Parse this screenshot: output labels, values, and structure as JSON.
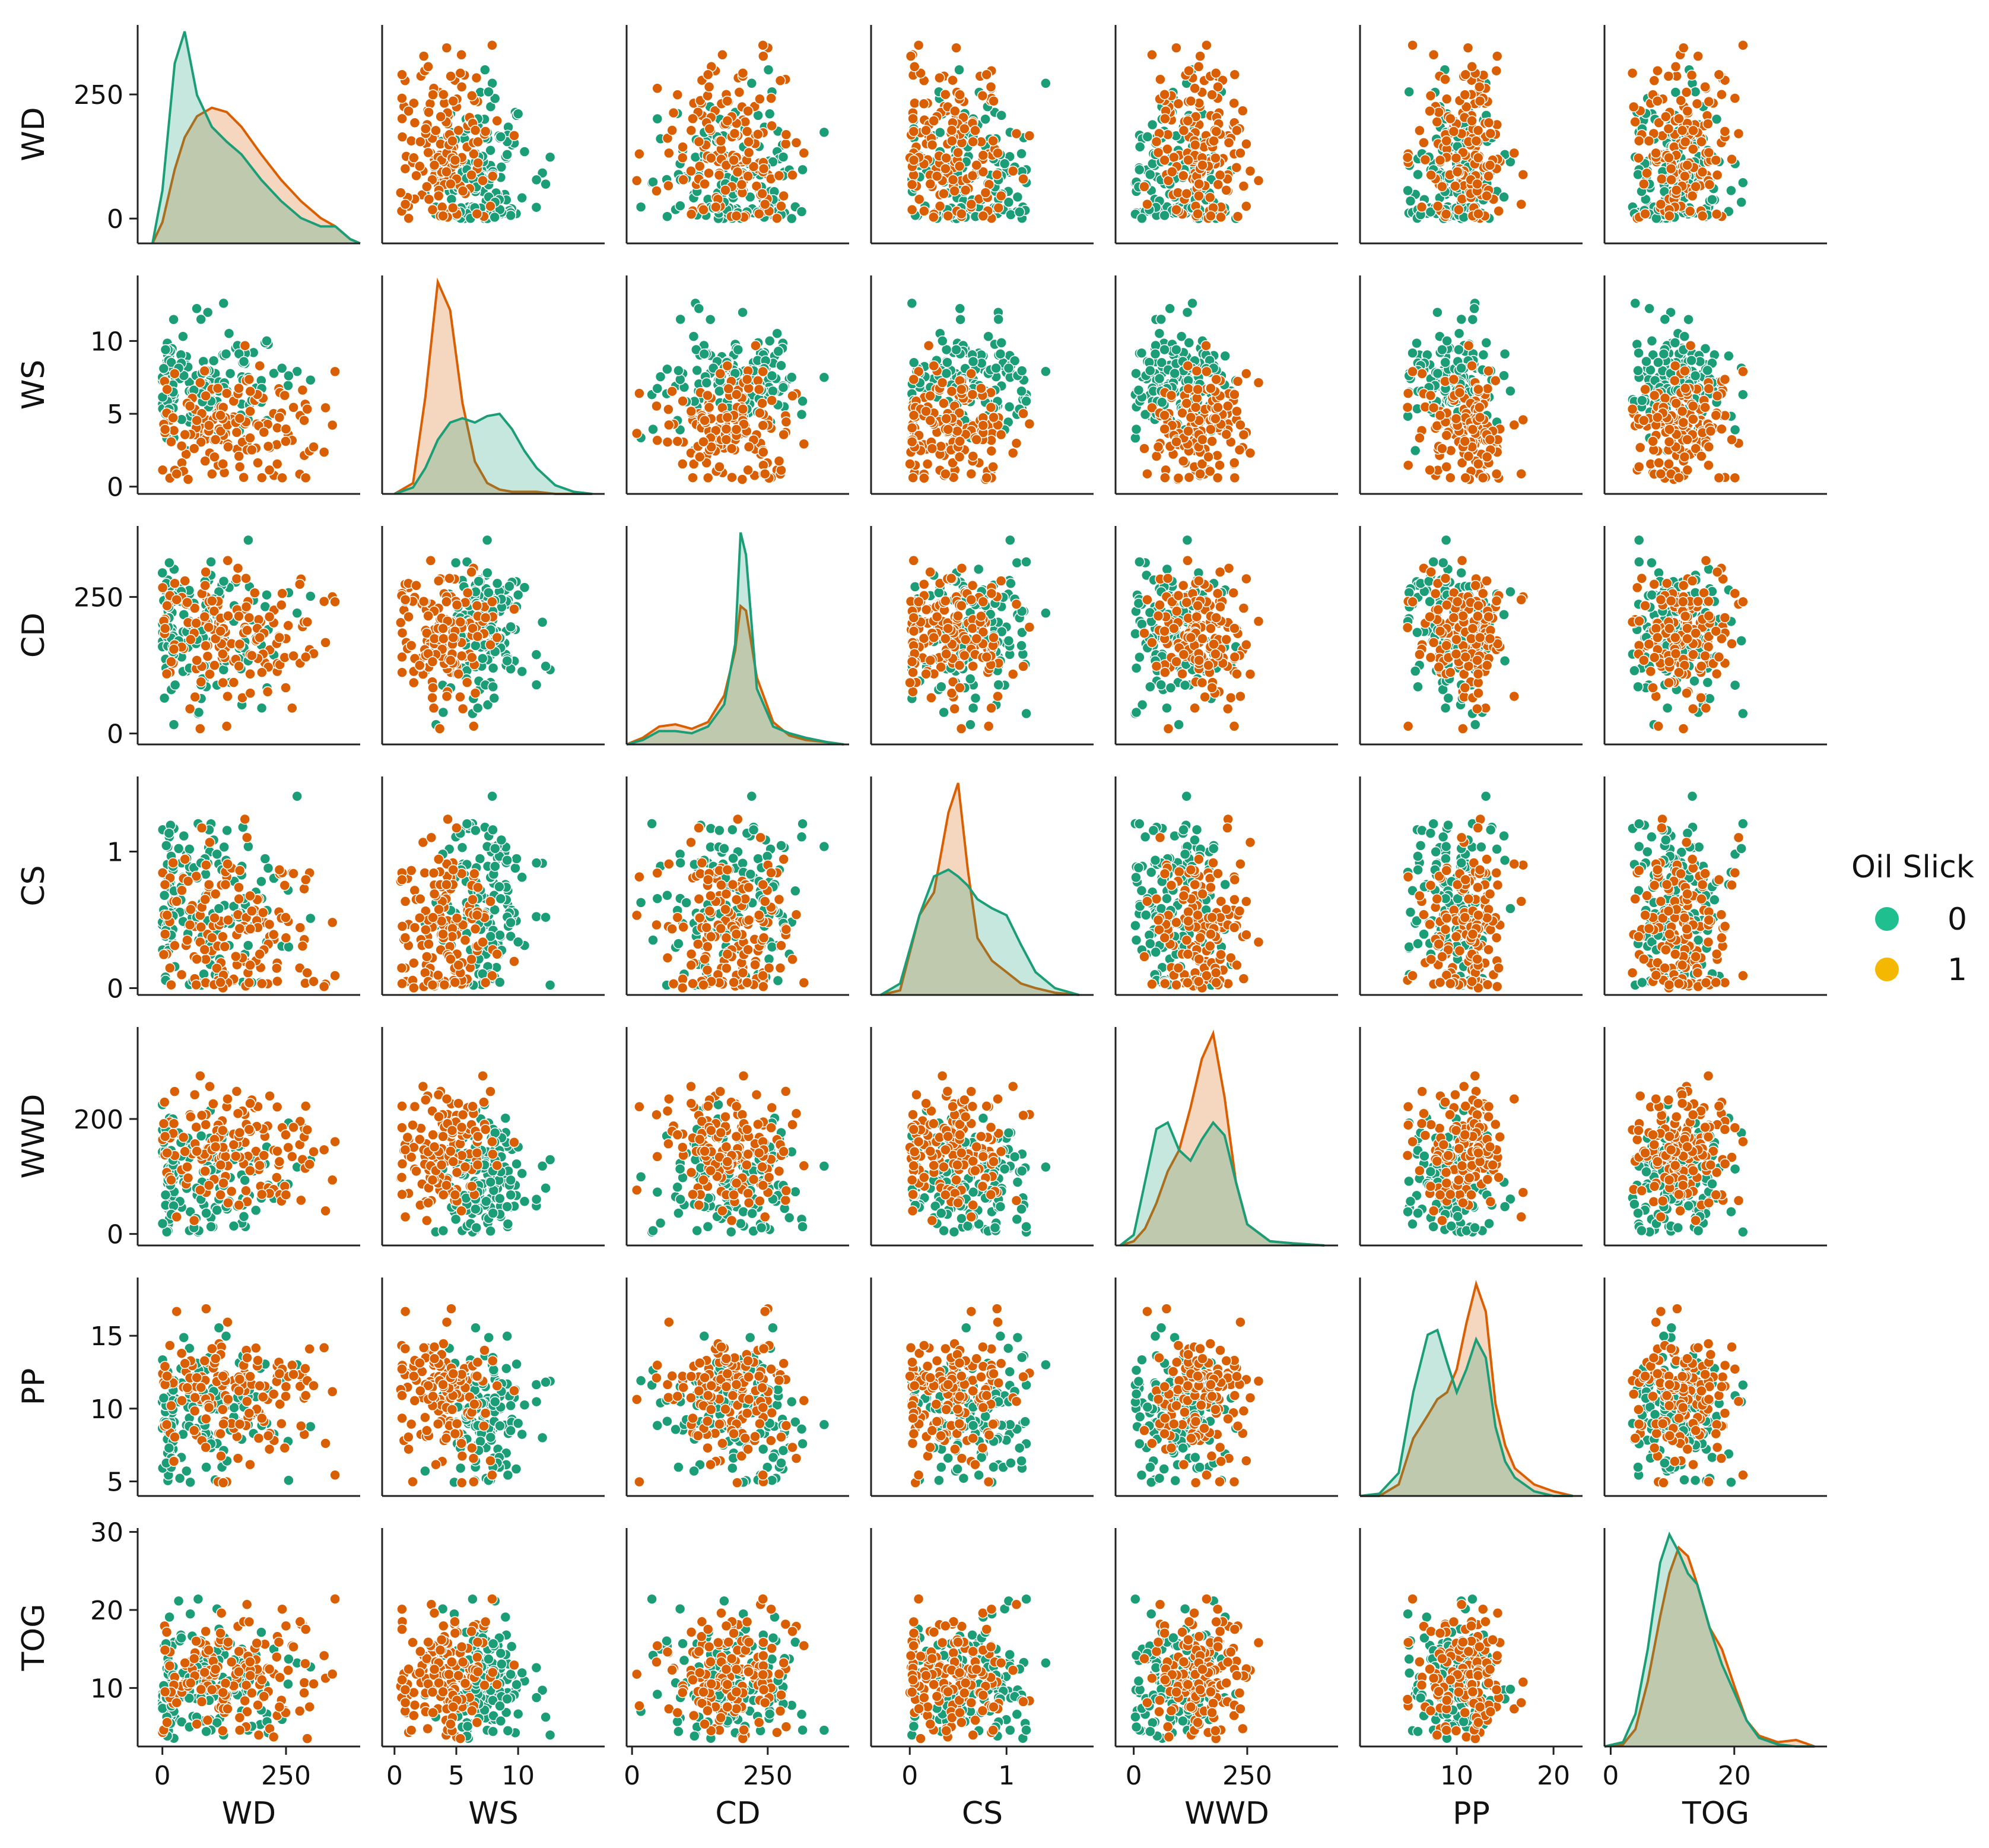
{
  "chart_data": {
    "type": "scatter",
    "title": "",
    "variables": [
      "WD",
      "WS",
      "CD",
      "CS",
      "WWD",
      "PP",
      "TOG"
    ],
    "hue": "Oil Slick",
    "diagonal": "kde",
    "legend": {
      "title": "Oil Slick",
      "position": "right",
      "entries": [
        {
          "label": "0",
          "color": "#1b9e77"
        },
        {
          "label": "1",
          "color": "#d95f02"
        }
      ]
    },
    "colors": {
      "0": "#1b9e77",
      "1": "#d95f02"
    },
    "legend_marker_colors": {
      "0": "#1fbf90",
      "1": "#f5b800"
    },
    "axes": {
      "WD": {
        "label": "WD",
        "range": [
          -50,
          390
        ],
        "ticks": [
          0,
          250
        ],
        "tick_labels": [
          "0",
          "250"
        ]
      },
      "WS": {
        "label": "WS",
        "range": [
          -0.5,
          14.5
        ],
        "ticks": [
          0,
          5,
          10
        ],
        "tick_labels": [
          "0",
          "5",
          "10"
        ]
      },
      "CD": {
        "label": "CD",
        "range": [
          -20,
          380
        ],
        "ticks": [
          0,
          250
        ],
        "tick_labels": [
          "0",
          "250"
        ]
      },
      "CS": {
        "label": "CS",
        "range": [
          -0.05,
          1.55
        ],
        "ticks": [
          0,
          1
        ],
        "tick_labels": [
          "0",
          "1"
        ]
      },
      "WWD": {
        "label": "WWD",
        "range": [
          -20,
          360
        ],
        "ticks": [
          0,
          200
        ],
        "tick_labels": [
          "0",
          "200"
        ]
      },
      "PP": {
        "label": "PP",
        "range": [
          4,
          19
        ],
        "ticks": [
          5,
          10,
          15
        ],
        "tick_labels": [
          "5",
          "10",
          "15"
        ]
      },
      "TOG": {
        "label": "TOG",
        "range": [
          2.5,
          30.5
        ],
        "ticks": [
          10,
          20,
          30
        ],
        "tick_labels": [
          "10",
          "20",
          "30"
        ]
      }
    },
    "x_axes": {
      "WD": {
        "range": [
          -50,
          400
        ],
        "ticks": [
          0,
          250
        ],
        "tick_labels": [
          "0",
          "250"
        ]
      },
      "WS": {
        "range": [
          -1,
          17
        ],
        "ticks": [
          0,
          5,
          10
        ],
        "tick_labels": [
          "0",
          "5",
          "10"
        ]
      },
      "CD": {
        "range": [
          -10,
          400
        ],
        "ticks": [
          0,
          250
        ],
        "tick_labels": [
          "0",
          "250"
        ]
      },
      "CS": {
        "range": [
          -0.4,
          1.9
        ],
        "ticks": [
          0,
          1
        ],
        "tick_labels": [
          "0",
          "1"
        ]
      },
      "WWD": {
        "range": [
          -40,
          450
        ],
        "ticks": [
          0,
          250
        ],
        "tick_labels": [
          "0",
          "250"
        ]
      },
      "PP": {
        "range": [
          0,
          23
        ],
        "ticks": [
          10,
          20
        ],
        "tick_labels": [
          "10",
          "20"
        ]
      },
      "TOG": {
        "range": [
          -1,
          35
        ],
        "ticks": [
          0,
          20
        ],
        "tick_labels": [
          "0",
          "20"
        ]
      }
    },
    "kde": {
      "WD": {
        "x": [
          -20,
          0,
          25,
          45,
          70,
          100,
          130,
          160,
          200,
          240,
          280,
          320,
          350,
          380,
          400
        ],
        "0": [
          0,
          0.25,
          0.85,
          1.0,
          0.7,
          0.55,
          0.48,
          0.42,
          0.3,
          0.2,
          0.12,
          0.08,
          0.08,
          0.02,
          0
        ],
        "1": [
          0,
          0.1,
          0.35,
          0.5,
          0.6,
          0.64,
          0.62,
          0.55,
          0.42,
          0.3,
          0.2,
          0.12,
          0.08,
          0.02,
          0
        ]
      },
      "WS": {
        "x": [
          0,
          1.5,
          2.5,
          3.5,
          4.5,
          5.5,
          6.5,
          7.5,
          8.5,
          9.5,
          10.5,
          11.5,
          13,
          14.5,
          16
        ],
        "0": [
          0,
          0.03,
          0.12,
          0.25,
          0.33,
          0.35,
          0.33,
          0.36,
          0.37,
          0.3,
          0.2,
          0.12,
          0.04,
          0.01,
          0
        ],
        "1": [
          0,
          0.05,
          0.45,
          0.98,
          0.85,
          0.42,
          0.15,
          0.05,
          0.02,
          0.01,
          0.01,
          0.01,
          0,
          0,
          0
        ]
      },
      "CD": {
        "x": [
          -10,
          20,
          50,
          80,
          110,
          140,
          170,
          190,
          200,
          210,
          230,
          260,
          290,
          320,
          360,
          390
        ],
        "0": [
          0,
          0.02,
          0.06,
          0.06,
          0.05,
          0.08,
          0.18,
          0.45,
          0.95,
          0.85,
          0.25,
          0.08,
          0.05,
          0.03,
          0.01,
          0
        ],
        "1": [
          0,
          0.03,
          0.08,
          0.09,
          0.07,
          0.1,
          0.22,
          0.42,
          0.62,
          0.6,
          0.3,
          0.1,
          0.04,
          0.02,
          0.01,
          0
        ]
      },
      "CS": {
        "x": [
          -0.3,
          -0.1,
          0.1,
          0.25,
          0.4,
          0.5,
          0.6,
          0.7,
          0.85,
          1.0,
          1.15,
          1.3,
          1.5,
          1.75
        ],
        "0": [
          0,
          0.05,
          0.35,
          0.52,
          0.55,
          0.52,
          0.48,
          0.42,
          0.38,
          0.35,
          0.22,
          0.1,
          0.03,
          0
        ],
        "1": [
          0,
          0.02,
          0.35,
          0.45,
          0.8,
          0.93,
          0.55,
          0.25,
          0.15,
          0.1,
          0.05,
          0.03,
          0.01,
          0
        ]
      },
      "WWD": {
        "x": [
          -30,
          0,
          25,
          50,
          75,
          100,
          125,
          150,
          175,
          200,
          225,
          250,
          300,
          350,
          420
        ],
        "0": [
          0,
          0.05,
          0.3,
          0.55,
          0.58,
          0.45,
          0.4,
          0.5,
          0.58,
          0.52,
          0.3,
          0.1,
          0.02,
          0.01,
          0
        ],
        "1": [
          0,
          0.02,
          0.08,
          0.2,
          0.35,
          0.45,
          0.65,
          0.88,
          1.0,
          0.7,
          0.3,
          0.1,
          0.02,
          0.01,
          0
        ]
      },
      "PP": {
        "x": [
          0,
          2,
          4,
          5.5,
          7,
          8,
          9,
          10,
          11,
          12,
          13,
          14,
          15,
          16,
          18,
          20,
          22
        ],
        "0": [
          0,
          0.01,
          0.1,
          0.45,
          0.7,
          0.72,
          0.58,
          0.45,
          0.55,
          0.68,
          0.6,
          0.3,
          0.15,
          0.08,
          0.02,
          0,
          0
        ],
        "1": [
          0,
          0,
          0.05,
          0.25,
          0.35,
          0.42,
          0.45,
          0.55,
          0.75,
          0.92,
          0.8,
          0.4,
          0.22,
          0.12,
          0.05,
          0.02,
          0
        ]
      },
      "TOG": {
        "x": [
          -1,
          2,
          4,
          6,
          8,
          9.5,
          11,
          12.5,
          14,
          16,
          18,
          20,
          22,
          24,
          27,
          30,
          33
        ],
        "0": [
          0,
          0.02,
          0.15,
          0.45,
          0.85,
          0.98,
          0.9,
          0.8,
          0.75,
          0.55,
          0.38,
          0.25,
          0.12,
          0.04,
          0.01,
          0,
          0
        ],
        "1": [
          0,
          0.01,
          0.08,
          0.3,
          0.6,
          0.8,
          0.92,
          0.88,
          0.75,
          0.55,
          0.45,
          0.28,
          0.12,
          0.05,
          0.02,
          0.03,
          0
        ]
      }
    },
    "points": {
      "n_per_class": 150,
      "centers": {
        "0": {
          "WD": 75,
          "WS": 7.2,
          "CD": 190,
          "CS": 0.55,
          "WWD": 95,
          "PP": 9.8,
          "TOG": 10.5
        },
        "1": {
          "WD": 145,
          "WS": 4.0,
          "CD": 180,
          "CS": 0.42,
          "WWD": 145,
          "PP": 11.0,
          "TOG": 11.5
        }
      }
    }
  }
}
